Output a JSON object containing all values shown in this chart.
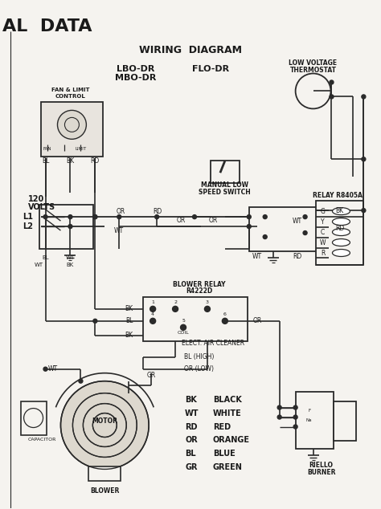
{
  "title": "WIRING DIAGRAM",
  "header_text": "AL DATA",
  "background_color": "#f0eeea",
  "line_color": "#2a2a2a",
  "text_color": "#1a1a1a",
  "relay_terminals": [
    "G",
    "Y",
    "C",
    "W",
    "R"
  ],
  "color_legend": [
    [
      "BK",
      "BLACK"
    ],
    [
      "WT",
      "WHITE"
    ],
    [
      "RD",
      "RED"
    ],
    [
      "OR",
      "ORANGE"
    ],
    [
      "BL",
      "BLUE"
    ],
    [
      "GR",
      "GREEN"
    ]
  ]
}
